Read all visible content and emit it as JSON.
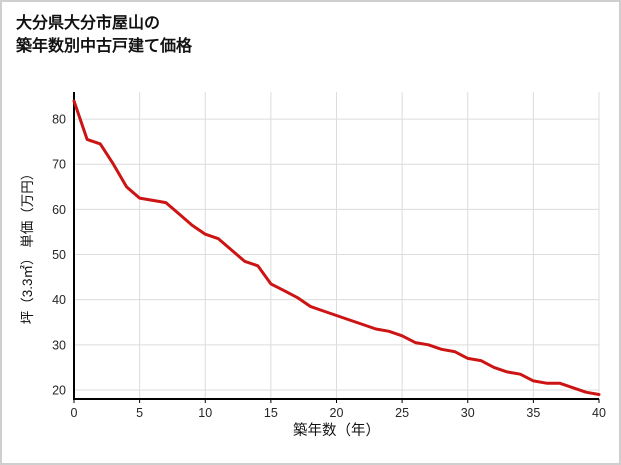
{
  "title": {
    "line1": "大分県大分市屋山の",
    "line2": "築年数別中古戸建て価格"
  },
  "chart_data": {
    "type": "line",
    "title": "大分県大分市屋山の築年数別中古戸建て価格",
    "xlabel": "築年数（年）",
    "ylabel": "坪（3.3㎡） 単価（万円）",
    "x": [
      0,
      1,
      2,
      3,
      4,
      5,
      6,
      7,
      8,
      9,
      10,
      11,
      12,
      13,
      14,
      15,
      16,
      17,
      18,
      19,
      20,
      21,
      22,
      23,
      24,
      25,
      26,
      27,
      28,
      29,
      30,
      31,
      32,
      33,
      34,
      35,
      36,
      37,
      38,
      39,
      40
    ],
    "values": [
      84,
      75.5,
      74.5,
      70,
      65,
      62.5,
      62,
      61.5,
      59,
      56.5,
      54.5,
      53.5,
      51,
      48.5,
      47.5,
      43.5,
      42,
      40.5,
      38.5,
      37.5,
      36.5,
      35.5,
      34.5,
      33.5,
      33,
      32,
      30.5,
      30,
      29,
      28.5,
      27,
      26.5,
      25,
      24,
      23.5,
      22,
      21.5,
      21.5,
      20.5,
      19.5,
      19
    ],
    "xlim": [
      0,
      40
    ],
    "ylim": [
      18,
      86
    ],
    "xticks": [
      0,
      5,
      10,
      15,
      20,
      25,
      30,
      35,
      40
    ],
    "yticks": [
      20,
      30,
      40,
      50,
      60,
      70,
      80
    ],
    "grid": true,
    "line_color": "#cc1414",
    "grid_color": "#dcdcdc",
    "axis_color": "#000000",
    "tick_label_color": "#262626",
    "legend": "none"
  }
}
